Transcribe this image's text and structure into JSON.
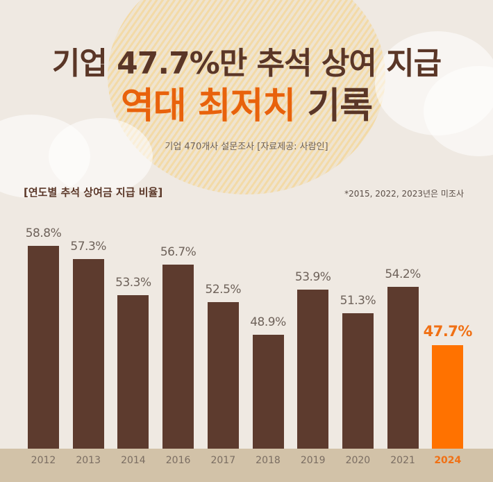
{
  "header": {
    "title_line1": "기업 47.7%만 추석 상여 지급",
    "title_line2_accent": "역대 최저치",
    "title_line2_rest": " 기록",
    "subtitle": "기업 470개사 설문조사  [자료제공: 사람인]"
  },
  "chart": {
    "heading": "[연도별 추석 상여금 지급 비율]",
    "note": "*2015, 2022, 2023년은 미조사"
  },
  "colors": {
    "bar": "#5d3b2e",
    "highlight": "#ff7200",
    "highlight_text": "#f07014",
    "background": "#efe9e2",
    "ground": "#d2c2a8"
  },
  "chart_data": {
    "type": "bar",
    "title": "기업 47.7%만 추석 상여 지급 역대 최저치 기록",
    "subtitle": "[연도별 추석 상여금 지급 비율]",
    "categories": [
      "2012",
      "2013",
      "2014",
      "2016",
      "2017",
      "2018",
      "2019",
      "2020",
      "2021",
      "2024"
    ],
    "values": [
      58.8,
      57.3,
      53.3,
      56.7,
      52.5,
      48.9,
      53.9,
      51.3,
      54.2,
      47.7
    ],
    "value_labels": [
      "58.8%",
      "57.3%",
      "53.3%",
      "56.7%",
      "52.5%",
      "48.9%",
      "53.9%",
      "51.3%",
      "54.2%",
      "47.7%"
    ],
    "highlight_index": 9,
    "xlabel": "",
    "ylabel": "",
    "unit": "%",
    "annotations": [
      "*2015, 2022, 2023년은 미조사",
      "기업 470개사 설문조사  [자료제공: 사람인]"
    ],
    "grid": false,
    "legend": "none"
  }
}
